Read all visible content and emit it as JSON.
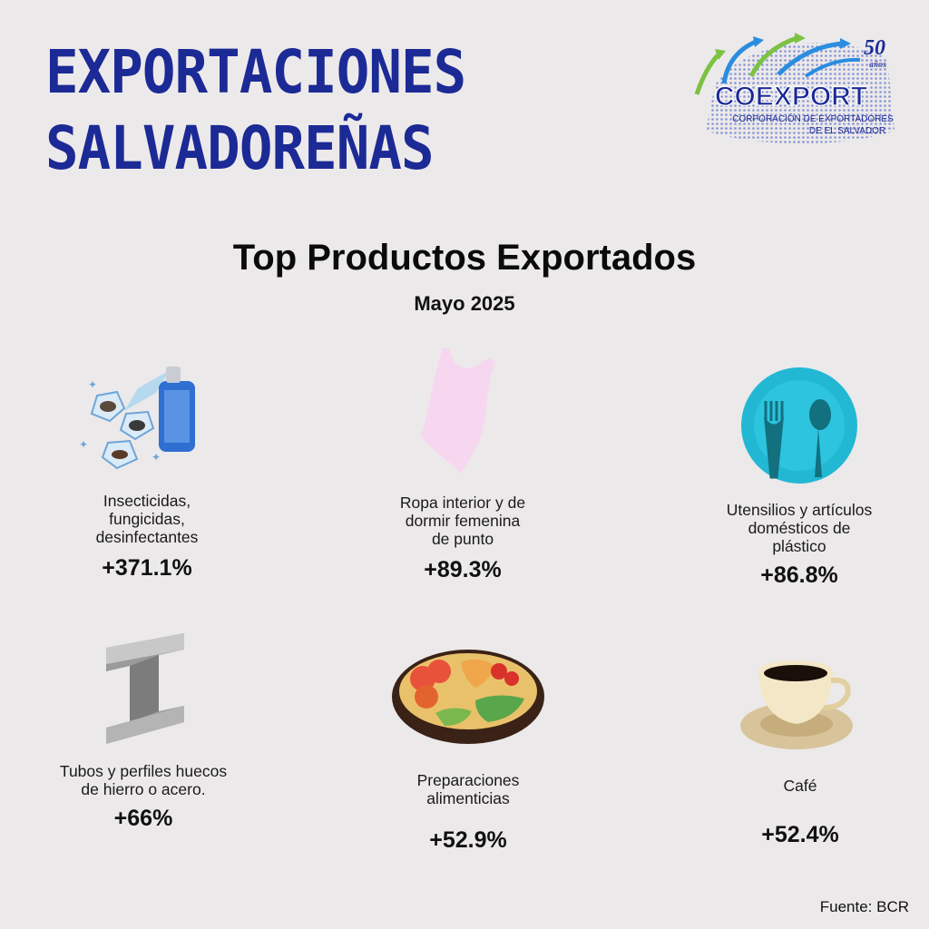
{
  "header": {
    "title_line1": "EXPORTACIONES",
    "title_line2": "SALVADOREÑAS"
  },
  "logo": {
    "anniversary": "50",
    "anniversary_sub": "años",
    "name": "COEXPORT",
    "tagline_line1": "CORPORACIÓN DE EXPORTADORES",
    "tagline_line2": "DE EL SALVADOR",
    "brand_color": "#1c2a96"
  },
  "main": {
    "subtitle": "Top Productos Exportados",
    "period": "Mayo 2025"
  },
  "products": [
    {
      "icon": "insecticide-spray-icon",
      "label": "Insecticidas,\nfungicidas,\ndesinfectantes",
      "value": "+371.1%"
    },
    {
      "icon": "bodysuit-icon",
      "label": "Ropa interior y de\ndormir femenina\nde punto",
      "value": "+89.3%"
    },
    {
      "icon": "plate-utensils-icon",
      "label": "Utensilios y artículos\ndomésticos de\nplástico",
      "value": "+86.8%"
    },
    {
      "icon": "steel-beam-icon",
      "label": "Tubos y perfiles huecos\nde hierro o acero.",
      "value": "+66%"
    },
    {
      "icon": "food-bowl-icon",
      "label": "Preparaciones\nalimenticias",
      "value": "+52.9%"
    },
    {
      "icon": "coffee-cup-icon",
      "label": "Café",
      "value": "+52.4%"
    }
  ],
  "footer": {
    "source": "Fuente: BCR"
  }
}
